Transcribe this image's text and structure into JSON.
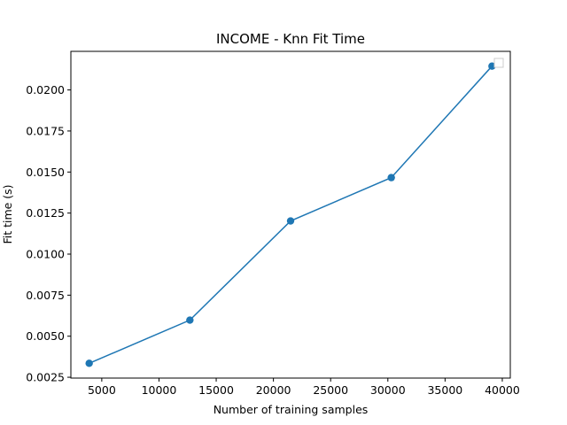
{
  "chart_data": {
    "type": "line",
    "title": "INCOME - Knn Fit Time",
    "xlabel": "Number of training samples",
    "ylabel": "Fit time (s)",
    "x": [
      3900,
      12700,
      21500,
      30300,
      39100
    ],
    "series": [
      {
        "values": [
          0.00335,
          0.00598,
          0.01202,
          0.01466,
          0.02145
        ],
        "color": "#1f77b4",
        "marker": "circle"
      }
    ],
    "xlim": [
      2300,
      40700
    ],
    "ylim": [
      0.00245,
      0.02235
    ],
    "xticks": [
      5000,
      10000,
      15000,
      20000,
      25000,
      30000,
      35000,
      40000
    ],
    "xtick_labels": [
      "5000",
      "10000",
      "15000",
      "20000",
      "25000",
      "30000",
      "35000",
      "40000"
    ],
    "yticks": [
      0.0025,
      0.005,
      0.0075,
      0.01,
      0.0125,
      0.015,
      0.0175,
      0.02
    ],
    "ytick_labels": [
      "0.0025",
      "0.0050",
      "0.0075",
      "0.0100",
      "0.0125",
      "0.0150",
      "0.0175",
      "0.0200"
    ],
    "grid": false,
    "legend": "top-right"
  }
}
